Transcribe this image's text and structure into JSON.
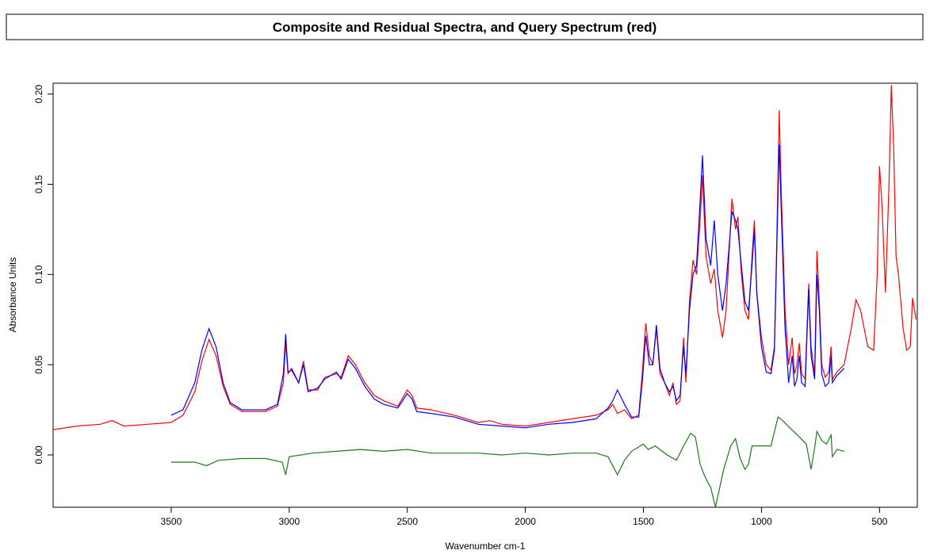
{
  "chart_data": {
    "type": "line",
    "title": "Composite and Residual Spectra, and Query Spectrum (red)",
    "x_label": "Wavenumber cm-1",
    "y_label": "Absorbance Units",
    "xlim": [
      4000,
      340
    ],
    "ylim": [
      -0.029,
      0.206
    ],
    "xticks": [
      3500,
      3000,
      2500,
      2000,
      1500,
      1000,
      500
    ],
    "yticks": [
      {
        "value": 0,
        "label": "0.00"
      },
      0.05,
      {
        "value": 0.1,
        "label": "0.10"
      },
      0.15,
      {
        "value": 0.2,
        "label": "0.20"
      }
    ],
    "series": [
      {
        "color": "#ff0000",
        "x": [
          4000,
          3900,
          3800,
          3750,
          3700,
          3600,
          3500,
          3450,
          3400,
          3370,
          3340,
          3310,
          3280,
          3250,
          3200,
          3100,
          3050,
          3025,
          3015,
          3005,
          2990,
          2960,
          2940,
          2920,
          2880,
          2850,
          2800,
          2780,
          2750,
          2720,
          2680,
          2640,
          2600,
          2540,
          2500,
          2480,
          2460,
          2400,
          2300,
          2200,
          2150,
          2100,
          2000,
          1900,
          1800,
          1700,
          1650,
          1630,
          1610,
          1580,
          1550,
          1520,
          1505,
          1490,
          1475,
          1460,
          1445,
          1430,
          1410,
          1390,
          1375,
          1360,
          1345,
          1330,
          1320,
          1305,
          1290,
          1275,
          1260,
          1250,
          1235,
          1215,
          1200,
          1185,
          1165,
          1150,
          1125,
          1110,
          1100,
          1085,
          1070,
          1055,
          1040,
          1030,
          1020,
          1000,
          980,
          960,
          945,
          935,
          925,
          915,
          900,
          885,
          870,
          860,
          850,
          840,
          830,
          815,
          800,
          790,
          775,
          765,
          755,
          745,
          730,
          715,
          705,
          700,
          680,
          650,
          620,
          600,
          580,
          550,
          525,
          510,
          500,
          490,
          475,
          460,
          450,
          440,
          430,
          420,
          400,
          385,
          370,
          360,
          345
        ],
        "values": [
          0.014,
          0.016,
          0.017,
          0.019,
          0.016,
          0.017,
          0.018,
          0.022,
          0.035,
          0.052,
          0.064,
          0.055,
          0.038,
          0.028,
          0.024,
          0.024,
          0.027,
          0.04,
          0.062,
          0.045,
          0.048,
          0.04,
          0.052,
          0.036,
          0.036,
          0.043,
          0.045,
          0.043,
          0.055,
          0.05,
          0.04,
          0.033,
          0.03,
          0.027,
          0.036,
          0.033,
          0.026,
          0.025,
          0.022,
          0.018,
          0.019,
          0.017,
          0.016,
          0.018,
          0.02,
          0.022,
          0.025,
          0.028,
          0.023,
          0.025,
          0.02,
          0.022,
          0.045,
          0.073,
          0.055,
          0.05,
          0.07,
          0.045,
          0.04,
          0.033,
          0.04,
          0.028,
          0.03,
          0.065,
          0.04,
          0.085,
          0.108,
          0.1,
          0.13,
          0.155,
          0.11,
          0.095,
          0.103,
          0.08,
          0.065,
          0.08,
          0.142,
          0.125,
          0.132,
          0.1,
          0.08,
          0.075,
          0.11,
          0.13,
          0.09,
          0.065,
          0.05,
          0.047,
          0.06,
          0.12,
          0.191,
          0.14,
          0.08,
          0.05,
          0.065,
          0.045,
          0.05,
          0.062,
          0.045,
          0.042,
          0.095,
          0.06,
          0.045,
          0.113,
          0.085,
          0.05,
          0.043,
          0.046,
          0.06,
          0.042,
          0.046,
          0.05,
          0.07,
          0.086,
          0.08,
          0.06,
          0.058,
          0.1,
          0.16,
          0.14,
          0.09,
          0.15,
          0.205,
          0.17,
          0.11,
          0.1,
          0.07,
          0.058,
          0.06,
          0.087,
          0.075
        ]
      },
      {
        "color": "#0000ff",
        "x": [
          3500,
          3450,
          3400,
          3370,
          3340,
          3310,
          3280,
          3250,
          3200,
          3100,
          3050,
          3025,
          3015,
          3005,
          2990,
          2960,
          2940,
          2920,
          2880,
          2850,
          2800,
          2780,
          2750,
          2720,
          2680,
          2640,
          2600,
          2540,
          2500,
          2480,
          2460,
          2400,
          2300,
          2200,
          2100,
          2000,
          1900,
          1800,
          1700,
          1650,
          1630,
          1610,
          1580,
          1550,
          1520,
          1505,
          1490,
          1475,
          1460,
          1445,
          1430,
          1410,
          1390,
          1375,
          1360,
          1345,
          1330,
          1320,
          1305,
          1290,
          1275,
          1260,
          1250,
          1235,
          1215,
          1200,
          1185,
          1165,
          1150,
          1125,
          1110,
          1100,
          1085,
          1070,
          1055,
          1040,
          1030,
          1020,
          1000,
          980,
          960,
          945,
          935,
          925,
          915,
          900,
          885,
          870,
          860,
          850,
          840,
          830,
          815,
          800,
          790,
          775,
          765,
          755,
          745,
          730,
          715,
          705,
          700,
          680,
          650
        ],
        "values": [
          0.022,
          0.025,
          0.04,
          0.058,
          0.07,
          0.06,
          0.04,
          0.029,
          0.025,
          0.025,
          0.028,
          0.045,
          0.067,
          0.046,
          0.047,
          0.04,
          0.05,
          0.035,
          0.037,
          0.042,
          0.046,
          0.042,
          0.053,
          0.048,
          0.038,
          0.031,
          0.028,
          0.026,
          0.034,
          0.031,
          0.024,
          0.023,
          0.021,
          0.017,
          0.016,
          0.015,
          0.017,
          0.018,
          0.02,
          0.026,
          0.03,
          0.036,
          0.028,
          0.021,
          0.021,
          0.04,
          0.066,
          0.05,
          0.05,
          0.072,
          0.048,
          0.04,
          0.035,
          0.038,
          0.03,
          0.033,
          0.06,
          0.045,
          0.08,
          0.1,
          0.105,
          0.14,
          0.166,
          0.12,
          0.105,
          0.13,
          0.1,
          0.08,
          0.095,
          0.135,
          0.13,
          0.125,
          0.105,
          0.085,
          0.08,
          0.105,
          0.125,
          0.09,
          0.06,
          0.046,
          0.045,
          0.058,
          0.115,
          0.172,
          0.13,
          0.07,
          0.04,
          0.055,
          0.038,
          0.042,
          0.055,
          0.04,
          0.038,
          0.092,
          0.055,
          0.042,
          0.1,
          0.08,
          0.045,
          0.038,
          0.04,
          0.055,
          0.04,
          0.044,
          0.048
        ]
      },
      {
        "color": "#1a7a1a",
        "x": [
          3500,
          3400,
          3350,
          3300,
          3200,
          3100,
          3030,
          3015,
          3000,
          2900,
          2800,
          2700,
          2600,
          2500,
          2400,
          2300,
          2200,
          2100,
          2000,
          1900,
          1800,
          1700,
          1650,
          1610,
          1580,
          1550,
          1500,
          1480,
          1450,
          1400,
          1360,
          1330,
          1300,
          1280,
          1260,
          1240,
          1215,
          1195,
          1180,
          1160,
          1130,
          1110,
          1090,
          1070,
          1055,
          1040,
          1000,
          960,
          930,
          910,
          880,
          840,
          810,
          790,
          775,
          765,
          745,
          725,
          705,
          700,
          680,
          650
        ],
        "values": [
          -0.004,
          -0.004,
          -0.006,
          -0.003,
          -0.002,
          -0.002,
          -0.004,
          -0.011,
          -0.001,
          0.001,
          0.002,
          0.003,
          0.002,
          0.003,
          0.001,
          0.001,
          0.001,
          0,
          0.001,
          0,
          0.001,
          0.001,
          -0.001,
          -0.011,
          -0.003,
          0.002,
          0.006,
          0.003,
          0.005,
          0,
          -0.003,
          0.005,
          0.012,
          0.01,
          -0.005,
          -0.012,
          -0.018,
          -0.029,
          -0.02,
          -0.008,
          0.005,
          0.009,
          -0.002,
          -0.008,
          -0.005,
          0.005,
          0.005,
          0.005,
          0.021,
          0.019,
          0.015,
          0.01,
          0.006,
          -0.008,
          0.004,
          0.013,
          0.008,
          0.006,
          0.011,
          -0.001,
          0.003,
          0.002
        ]
      }
    ]
  }
}
